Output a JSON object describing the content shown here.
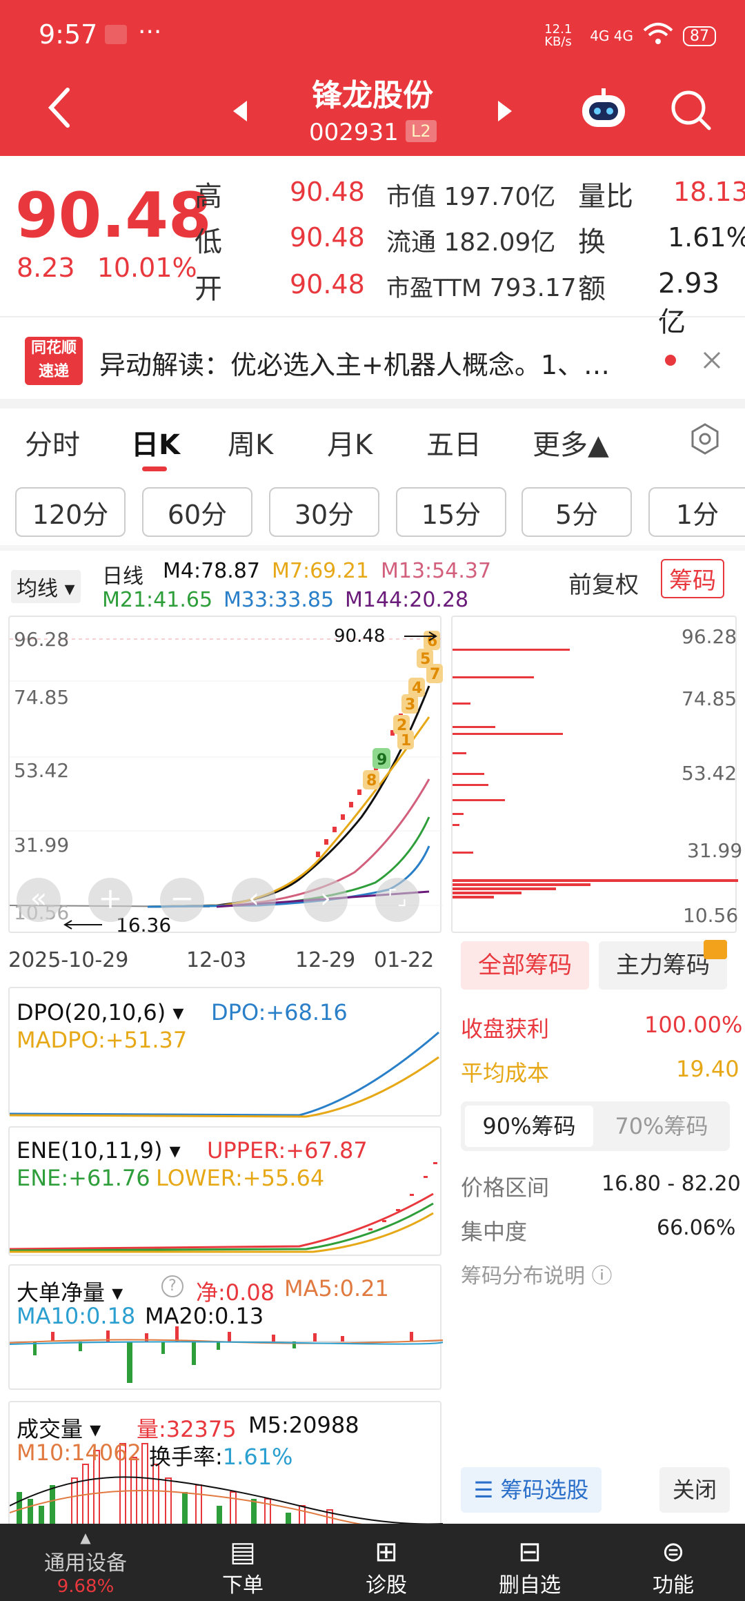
{
  "status_bar": {
    "time": "9:57",
    "net_speed": "12.1 KB/s",
    "signal": "4G 4G",
    "battery": "87"
  },
  "header": {
    "name": "锋龙股份",
    "code": "002931",
    "level": "L2"
  },
  "quote": {
    "price": "90.48",
    "change": "8.23",
    "change_pct": "10.01%",
    "high_label": "高",
    "high": "90.48",
    "low_label": "低",
    "low": "90.48",
    "open_label": "开",
    "open": "90.48",
    "mcap_label": "市值",
    "mcap": "197.70亿",
    "float_label": "流通",
    "float": "182.09亿",
    "pe_label": "市盈TTM",
    "pe": "793.17",
    "vr_label": "量比",
    "vr": "18.13",
    "turn_label": "换",
    "turn": "1.61%",
    "amt_label": "额",
    "amt": "2.93亿"
  },
  "news": {
    "logo_top": "同花顺",
    "logo_bottom": "速递",
    "text": "异动解读：优必选入主+机器人概念。1、…"
  },
  "tabs": [
    "分时",
    "日K",
    "周K",
    "月K",
    "五日",
    "更多▲"
  ],
  "periods": [
    "120分",
    "60分",
    "30分",
    "15分",
    "5分",
    "1分"
  ],
  "kline": {
    "ma_select": "均线 ▾",
    "line_type": "日线",
    "m4": "M4:78.87",
    "m7": "M7:69.21",
    "m13": "M13:54.37",
    "m21": "M21:41.65",
    "m33": "M33:33.85",
    "m144": "M144:20.28",
    "adjust": "前复权",
    "chip_btn": "筹码",
    "y_ticks": [
      "96.28",
      "74.85",
      "53.42",
      "31.99",
      "10.56"
    ],
    "max_label": "90.48",
    "min_label": "16.36",
    "dates": [
      "2025-10-29",
      "12-03",
      "12-29",
      "01-22"
    ],
    "seq_labels": [
      "1",
      "2",
      "3",
      "4",
      "5",
      "6",
      "7",
      "8",
      "9"
    ]
  },
  "chip_panel": {
    "tab_all": "全部筹码",
    "tab_main": "主力筹码",
    "profit_label": "收盘获利",
    "profit": "100.00%",
    "avg_label": "平均成本",
    "avg": "19.40",
    "seg_90": "90%筹码",
    "seg_70": "70%筹码",
    "range_label": "价格区间",
    "range": "16.80 - 82.20",
    "conc_label": "集中度",
    "conc": "66.06%",
    "explain": "筹码分布说明 ⓘ",
    "select_btn": "筹码选股",
    "close_btn": "关闭"
  },
  "dpo": {
    "name": "DPO(20,10,6) ▾",
    "dpo": "DPO:+68.16",
    "madpo": "MADPO:+51.37"
  },
  "ene": {
    "name": "ENE(10,11,9) ▾",
    "upper": "UPPER:+67.87",
    "ene": "ENE:+61.76",
    "lower": "LOWER:+55.64"
  },
  "bigorder": {
    "name": "大单净量 ▾",
    "net": "净:0.08",
    "ma5": "MA5:0.21",
    "ma10": "MA10:0.18",
    "ma20": "MA20:0.13"
  },
  "volume": {
    "name": "成交量 ▾",
    "vol": "量:32375",
    "m5": "M5:20988",
    "m10": "M10:14062",
    "turnover_label": "换手率:",
    "turnover": "1.61%"
  },
  "bottom_nav": [
    "通用设备",
    "下单",
    "诊股",
    "删自选",
    "功能"
  ],
  "bottom_nav_sub": "9.68%",
  "colors": {
    "red": "#e8383d",
    "green": "#2e9e3a",
    "orange": "#e6a817",
    "blue": "#2a7fc9",
    "purple": "#6a1b7a",
    "pink": "#d2607d"
  }
}
